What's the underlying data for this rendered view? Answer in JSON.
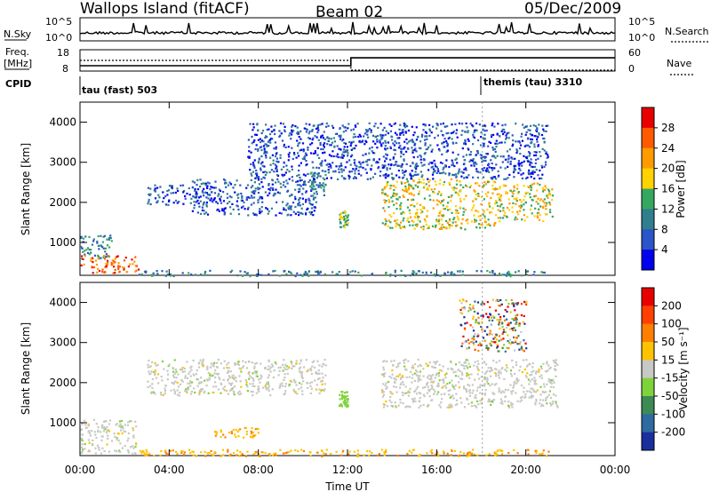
{
  "header": {
    "station": "Wallops Island (fitACF)",
    "beam": "Beam 02",
    "date": "05/Dec/2009"
  },
  "top_strip": {
    "nsky_label": "N.Sky",
    "nsky_ticks": [
      "10^5",
      "10^0"
    ],
    "nsearch_label": "N.Search",
    "nsearch_ticks": [
      "10^5",
      "10^0"
    ],
    "freq_label": "Freq.",
    "freq_unit": "[MHz]",
    "freq_ticks": [
      "18",
      "8"
    ],
    "nave_label": "Nave",
    "nave_ticks": [
      "60",
      "0"
    ],
    "cpid_label": "CPID",
    "cpid_segments": [
      {
        "name": "tau (fast) 503",
        "start_hour": 0.0
      },
      {
        "name": "themis (tau) 3310",
        "start_hour": 18.05
      }
    ],
    "freq_series": {
      "x_hours": [
        0,
        12.15,
        12.15,
        24
      ],
      "y_mhz": [
        10.5,
        10.5,
        14.2,
        14.2
      ]
    },
    "nave_series": {
      "x_hours": [
        0,
        12.15,
        12.15,
        24
      ],
      "y": [
        30,
        30,
        0,
        0
      ]
    }
  },
  "chart_data": [
    {
      "type": "heatmap",
      "panel": "power",
      "ylabel": "Slant Range [km]",
      "xlabel": "",
      "x_ticks": [
        "00:00",
        "04:00",
        "08:00",
        "12:00",
        "16:00",
        "20:00",
        "00:00"
      ],
      "y_ticks": [
        "1000",
        "2000",
        "3000",
        "4000"
      ],
      "xlim_hours": [
        0,
        24
      ],
      "ylim_km": [
        180,
        4500
      ],
      "colorbar": {
        "label": "Power [dB]",
        "ticks": [
          "28",
          "24",
          "20",
          "16",
          "12",
          "8",
          "4"
        ],
        "colors": [
          "#0000ee",
          "#2a55c8",
          "#2f7f8f",
          "#35a860",
          "#ffd200",
          "#ff9a00",
          "#ff5a00",
          "#e80000"
        ]
      },
      "echo_regions": [
        {
          "t0": 0.0,
          "t1": 1.5,
          "r0": 600,
          "r1": 1200,
          "level": 2
        },
        {
          "t0": 0.0,
          "t1": 2.6,
          "r0": 250,
          "r1": 700,
          "level": 6
        },
        {
          "t0": 2.6,
          "t1": 21.0,
          "r0": 180,
          "r1": 320,
          "level": 2
        },
        {
          "t0": 3.0,
          "t1": 6.0,
          "r0": 1950,
          "r1": 2450,
          "level": 1
        },
        {
          "t0": 5.0,
          "t1": 10.6,
          "r0": 1700,
          "r1": 2600,
          "level": 1
        },
        {
          "t0": 10.3,
          "t1": 11.0,
          "r0": 2200,
          "r1": 2800,
          "level": 2
        },
        {
          "t0": 11.6,
          "t1": 12.0,
          "r0": 1400,
          "r1": 1800,
          "level": 3
        },
        {
          "t0": 13.5,
          "t1": 18.6,
          "r0": 1350,
          "r1": 2600,
          "level": 4
        },
        {
          "t0": 18.6,
          "t1": 21.2,
          "r0": 1550,
          "r1": 2500,
          "level": 4
        },
        {
          "t0": 7.5,
          "t1": 21.0,
          "r0": 2600,
          "r1": 4000,
          "level": 1
        }
      ]
    },
    {
      "type": "heatmap",
      "panel": "velocity",
      "ylabel": "Slant Range [km]",
      "xlabel": "Time UT",
      "x_ticks": [
        "00:00",
        "04:00",
        "08:00",
        "12:00",
        "16:00",
        "20:00",
        "00:00"
      ],
      "y_ticks": [
        "1000",
        "2000",
        "3000",
        "4000"
      ],
      "xlim_hours": [
        0,
        24
      ],
      "ylim_km": [
        180,
        4500
      ],
      "colorbar": {
        "label": "Velocity [m s⁻¹]",
        "ticks": [
          "200",
          "100",
          "50",
          "15",
          "-15",
          "-50",
          "-100",
          "-200"
        ],
        "colors": [
          "#1a2e9e",
          "#2f6aa0",
          "#3d8a55",
          "#7fd33a",
          "#c8c8c4",
          "#ffc200",
          "#ff8000",
          "#ff4000",
          "#e80000"
        ]
      },
      "echo_regions": [
        {
          "t0": 0.0,
          "t1": 2.5,
          "r0": 250,
          "r1": 1100,
          "v": "-15"
        },
        {
          "t0": 2.5,
          "t1": 21.0,
          "r0": 180,
          "r1": 350,
          "v": "-50"
        },
        {
          "t0": 3.0,
          "t1": 11.0,
          "r0": 1700,
          "r1": 2600,
          "v": "-15"
        },
        {
          "t0": 13.5,
          "t1": 21.4,
          "r0": 1400,
          "r1": 2600,
          "v": "-15"
        },
        {
          "t0": 6.0,
          "t1": 8.0,
          "r0": 650,
          "r1": 900,
          "v": "-50"
        },
        {
          "t0": 11.6,
          "t1": 12.0,
          "r0": 1400,
          "r1": 1800,
          "v": "15"
        },
        {
          "t0": 17.0,
          "t1": 20.0,
          "r0": 2800,
          "r1": 4100,
          "v": "mixed"
        }
      ]
    }
  ]
}
